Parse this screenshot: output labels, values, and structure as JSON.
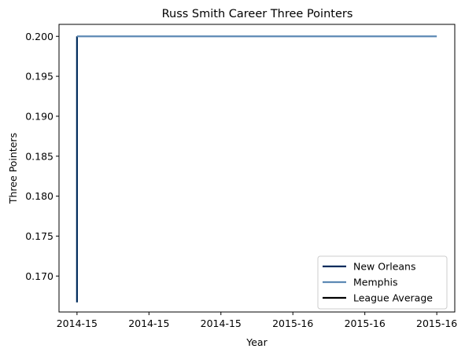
{
  "chart_data": {
    "type": "line",
    "title": "Russ Smith  Career Three Pointers",
    "xlabel": "Year",
    "ylabel": "Three Pointers",
    "x_tick_labels": [
      "2014-15",
      "2014-15",
      "2014-15",
      "2015-16",
      "2015-16",
      "2015-16"
    ],
    "y_tick_labels": [
      "0.170",
      "0.175",
      "0.180",
      "0.185",
      "0.190",
      "0.195",
      "0.200"
    ],
    "y_ticks": [
      0.17,
      0.175,
      0.18,
      0.185,
      0.19,
      0.195,
      0.2
    ],
    "xlim": [
      -0.05,
      1.05
    ],
    "ylim": [
      0.1655,
      0.2015
    ],
    "grid": false,
    "legend_position": "lower-right",
    "series": [
      {
        "name": "New Orleans",
        "color": "#002B5C",
        "x": [
          0,
          0
        ],
        "y": [
          0.1667,
          0.2
        ]
      },
      {
        "name": "Memphis",
        "color": "#5D89B4",
        "x": [
          0,
          1
        ],
        "y": [
          0.2,
          0.2
        ]
      },
      {
        "name": "League Average",
        "color": "#000000",
        "x": [],
        "y": []
      }
    ]
  }
}
